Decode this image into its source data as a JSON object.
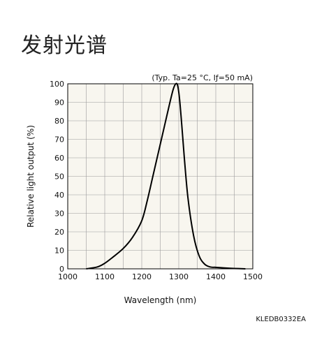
{
  "page": {
    "title": "发射光谱",
    "doc_code": "KLEDB0332EA"
  },
  "chart_data": {
    "type": "line",
    "note": "(Typ. Ta=25 °C, Iƒ=50 mA)",
    "xlabel": "Wavelength (nm)",
    "ylabel": "Relative light output (%)",
    "xlim": [
      1000,
      1500
    ],
    "ylim": [
      0,
      100
    ],
    "x_ticks": [
      "1000",
      "1100",
      "1200",
      "1300",
      "1400",
      "1500"
    ],
    "y_ticks": [
      "0",
      "10",
      "20",
      "30",
      "40",
      "50",
      "60",
      "70",
      "80",
      "90",
      "100"
    ],
    "grid": true,
    "plot_background": "#f8f6ef",
    "line_color": "#000000",
    "series": [
      {
        "x": [
          1050,
          1080,
          1100,
          1120,
          1150,
          1175,
          1200,
          1215,
          1230,
          1245,
          1260,
          1275,
          1285,
          1292,
          1297,
          1302,
          1308,
          1315,
          1325,
          1340,
          1355,
          1370,
          1385,
          1400,
          1420,
          1450,
          1480
        ],
        "y": [
          0,
          1,
          3,
          6,
          11,
          17,
          26,
          37,
          50,
          63,
          76,
          89,
          97,
          100,
          99,
          92,
          78,
          60,
          38,
          18,
          7,
          2.5,
          1,
          0.8,
          0.5,
          0.2,
          0
        ]
      }
    ]
  }
}
